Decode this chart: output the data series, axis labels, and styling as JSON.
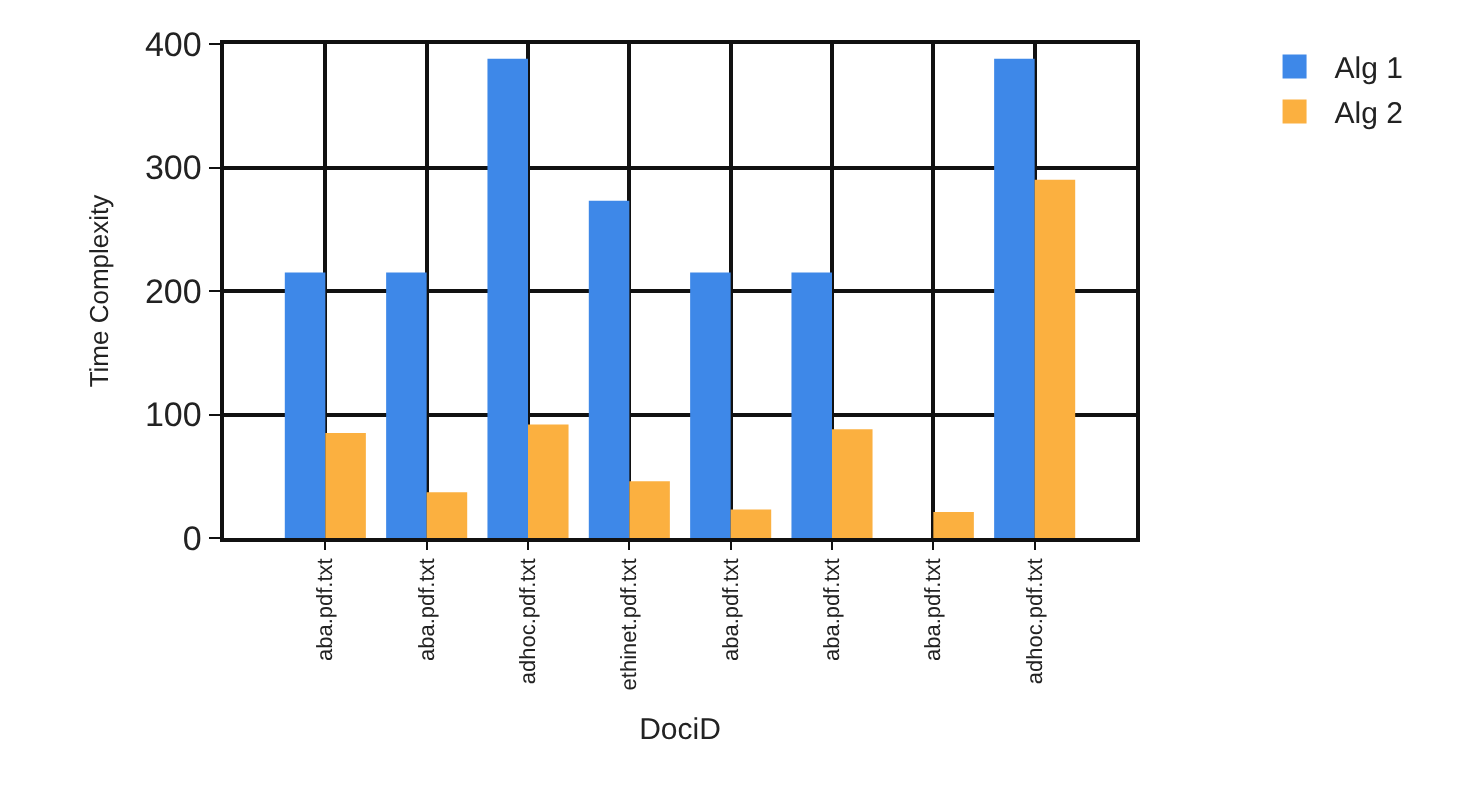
{
  "chart_data": {
    "type": "bar",
    "xlabel": "DociD",
    "ylabel": "Time Complexity",
    "categories": [
      "aba.pdf.txt",
      "aba.pdf.txt",
      "adhoc.pdf.txt",
      "ethinet.pdf.txt",
      "aba.pdf.txt",
      "aba.pdf.txt",
      "aba.pdf.txt",
      "adhoc.pdf.txt"
    ],
    "series": [
      {
        "name": "Alg 1",
        "color": "#3e88e8",
        "values": [
          215,
          215,
          388,
          273,
          215,
          215,
          null,
          388
        ]
      },
      {
        "name": "Alg 2",
        "color": "#fbb040",
        "values": [
          85,
          37,
          92,
          46,
          23,
          88,
          21,
          290
        ]
      }
    ],
    "ylim": [
      0,
      400
    ],
    "yticks": [
      0,
      100,
      200,
      300,
      400
    ],
    "grid": true,
    "legend": "top right"
  }
}
